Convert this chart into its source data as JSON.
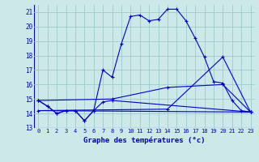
{
  "title": "Graphe des températures (°c)",
  "bg_color": "#cce8e8",
  "grid_color": "#99cccc",
  "line_color": "#0000cc",
  "xlim": [
    -0.5,
    23.5
  ],
  "ylim": [
    13,
    21.5
  ],
  "yticks": [
    13,
    14,
    15,
    16,
    17,
    18,
    19,
    20,
    21
  ],
  "xticks": [
    0,
    1,
    2,
    3,
    4,
    5,
    6,
    7,
    8,
    9,
    10,
    11,
    12,
    13,
    14,
    15,
    16,
    17,
    18,
    19,
    20,
    21,
    22,
    23
  ],
  "series1_x": [
    0,
    1,
    2,
    3,
    4,
    5,
    6,
    7,
    8,
    9,
    10,
    11,
    12,
    13,
    14,
    15,
    16,
    17,
    18,
    19,
    20,
    21,
    22,
    23
  ],
  "series1_y": [
    14.9,
    14.5,
    14.0,
    14.2,
    14.2,
    13.5,
    14.2,
    17.0,
    16.5,
    18.8,
    20.7,
    20.8,
    20.4,
    20.5,
    21.2,
    21.2,
    20.4,
    19.2,
    17.9,
    16.2,
    16.1,
    14.9,
    14.2,
    14.1
  ],
  "series2_x": [
    0,
    1,
    2,
    3,
    4,
    5,
    6,
    7,
    8,
    23
  ],
  "series2_y": [
    14.9,
    14.5,
    14.0,
    14.2,
    14.2,
    13.5,
    14.2,
    14.8,
    14.9,
    14.1
  ],
  "series3_x": [
    0,
    8,
    14,
    20,
    23
  ],
  "series3_y": [
    14.9,
    15.0,
    15.8,
    16.0,
    14.1
  ],
  "series4_x": [
    0,
    14,
    20,
    23
  ],
  "series4_y": [
    14.2,
    14.3,
    17.9,
    14.1
  ],
  "series5_x": [
    0,
    23
  ],
  "series5_y": [
    14.2,
    14.1
  ]
}
